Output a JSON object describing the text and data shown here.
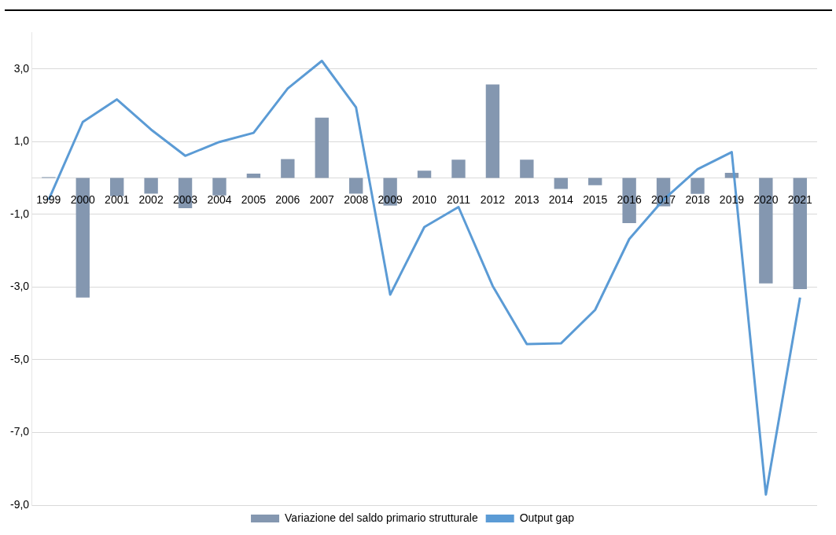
{
  "chart_data": {
    "type": "bar",
    "categories": [
      "1999",
      "2000",
      "2001",
      "2002",
      "2003",
      "2004",
      "2005",
      "2006",
      "2007",
      "2008",
      "2009",
      "2010",
      "2011",
      "2012",
      "2013",
      "2014",
      "2015",
      "2016",
      "2017",
      "2018",
      "2019",
      "2020",
      "2021"
    ],
    "series": [
      {
        "name": "Variazione del saldo primario strutturale",
        "color": "#8497b0",
        "values": [
          0.02,
          -3.29,
          -0.5,
          -0.43,
          -0.83,
          -0.48,
          0.12,
          0.52,
          1.66,
          -0.43,
          -0.76,
          0.2,
          0.5,
          2.57,
          0.5,
          -0.3,
          -0.2,
          -1.24,
          -0.78,
          -0.44,
          0.14,
          -2.9,
          -3.06
        ]
      },
      {
        "name": "Output gap",
        "type": "line",
        "color": "#5b9bd5",
        "values": [
          -0.6,
          1.54,
          2.16,
          1.33,
          0.61,
          0.99,
          1.24,
          2.46,
          3.22,
          1.94,
          -3.21,
          -1.35,
          -0.8,
          -2.97,
          -4.57,
          -4.55,
          -3.63,
          -1.68,
          -0.6,
          0.24,
          0.71,
          -8.71,
          -3.29
        ]
      }
    ],
    "ylim": [
      -9,
      4
    ],
    "yticks": [
      {
        "value": -9,
        "label": "-9,0"
      },
      {
        "value": -7,
        "label": "-7,0"
      },
      {
        "value": -5,
        "label": "-5,0"
      },
      {
        "value": -3,
        "label": "-3,0"
      },
      {
        "value": -1,
        "label": "-1,0"
      },
      {
        "value": 1,
        "label": "1,0"
      },
      {
        "value": 3,
        "label": "3,0"
      }
    ],
    "grid": "y",
    "legend": "bottom",
    "marker": "none",
    "line_style": "solid"
  }
}
